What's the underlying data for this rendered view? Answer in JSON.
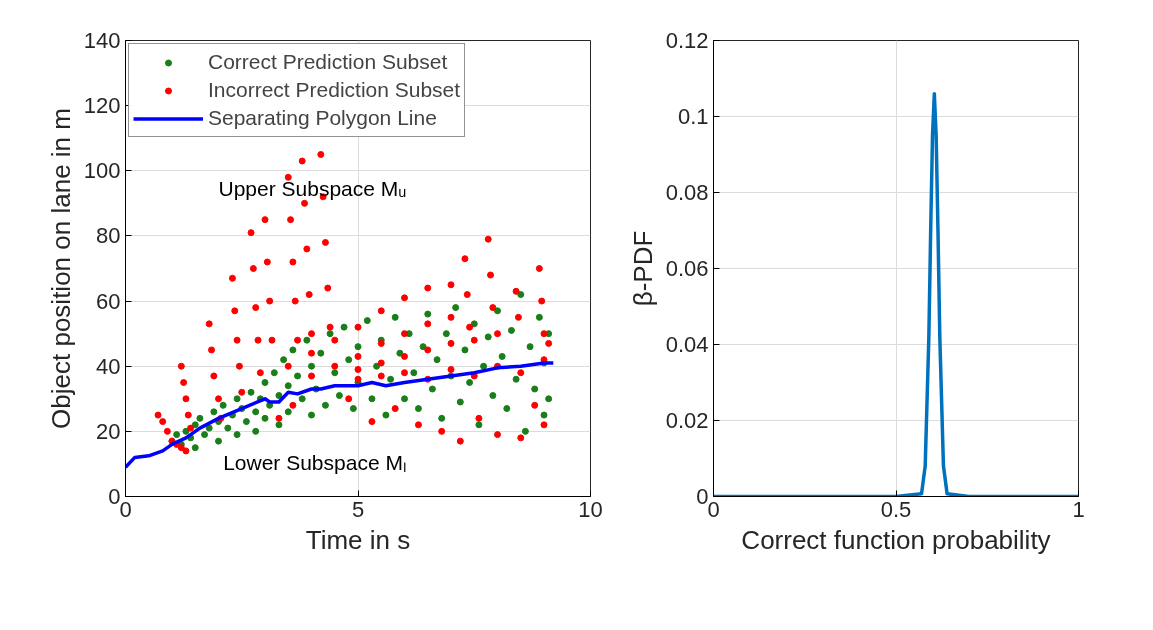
{
  "chart_data": [
    {
      "type": "scatter",
      "xlabel": "Time in s",
      "ylabel": "Object position on lane in m",
      "xlim": [
        0,
        10
      ],
      "xticks": [
        0,
        5,
        10
      ],
      "ylim": [
        0,
        140
      ],
      "yticks": [
        0,
        20,
        40,
        60,
        80,
        100,
        120,
        140
      ],
      "grid": true,
      "legend": "top left",
      "annotations": [
        "Upper Subspace Mᵤ",
        "Lower Subspace Mₗ"
      ],
      "series": [
        {
          "name": "Correct Prediction Subset",
          "type": "scatter",
          "marker": "circle",
          "color": "#1a7f1a",
          "x": [
            1.0,
            1.1,
            1.2,
            1.3,
            1.4,
            1.5,
            1.5,
            1.6,
            1.7,
            1.8,
            1.9,
            2.0,
            2.0,
            2.1,
            2.2,
            2.3,
            2.4,
            2.4,
            2.5,
            2.6,
            2.7,
            2.8,
            2.8,
            2.9,
            3.0,
            3.0,
            3.1,
            3.2,
            3.3,
            3.3,
            3.4,
            3.5,
            3.5,
            3.6,
            3.7,
            3.8,
            3.9,
            4.0,
            4.0,
            4.1,
            4.2,
            4.3,
            4.4,
            4.5,
            4.6,
            4.7,
            4.8,
            4.9,
            5.0,
            5.0,
            5.2,
            5.3,
            5.4,
            5.5,
            5.6,
            5.7,
            5.8,
            5.9,
            6.0,
            6.1,
            6.2,
            6.3,
            6.4,
            6.5,
            6.6,
            6.7,
            6.8,
            6.9,
            7.0,
            7.1,
            7.2,
            7.3,
            7.4,
            7.5,
            7.6,
            7.7,
            7.8,
            7.9,
            8.0,
            8.1,
            8.2,
            8.3,
            8.4,
            8.5,
            8.6,
            8.7,
            8.8,
            8.9,
            9.0,
            9.0,
            9.1,
            9.1
          ],
          "values": [
            17,
            19,
            16,
            20,
            18,
            22,
            15,
            24,
            19,
            21,
            26,
            17,
            23,
            28,
            21,
            25,
            30,
            19,
            27,
            23,
            32,
            26,
            20,
            30,
            35,
            24,
            28,
            38,
            31,
            22,
            42,
            34,
            26,
            45,
            37,
            30,
            48,
            40,
            25,
            33,
            44,
            28,
            50,
            38,
            31,
            52,
            42,
            27,
            46,
            35,
            54,
            30,
            40,
            48,
            25,
            36,
            55,
            44,
            30,
            50,
            38,
            27,
            46,
            56,
            33,
            42,
            24,
            50,
            37,
            58,
            29,
            45,
            35,
            53,
            22,
            40,
            49,
            31,
            57,
            43,
            27,
            51,
            36,
            62,
            20,
            46,
            33,
            55,
            41,
            25,
            50,
            30
          ]
        },
        {
          "name": "Incorrect Prediction Subset",
          "type": "scatter",
          "marker": "circle",
          "color": "#ff0000",
          "x": [
            0.7,
            0.8,
            0.9,
            1.0,
            1.1,
            1.2,
            1.3,
            1.2,
            1.25,
            1.3,
            1.35,
            1.4,
            1.8,
            1.85,
            1.9,
            2.0,
            2.05,
            2.3,
            2.35,
            2.4,
            2.45,
            2.5,
            2.7,
            2.75,
            2.8,
            2.85,
            2.9,
            3.0,
            3.05,
            3.1,
            3.15,
            3.5,
            3.55,
            3.6,
            3.65,
            3.7,
            3.8,
            3.85,
            3.9,
            3.95,
            4.0,
            4.2,
            4.25,
            4.3,
            4.35,
            4.4,
            3.5,
            4.0,
            4.5,
            5.0,
            5.5,
            6.0,
            6.5,
            7.0,
            4.0,
            4.5,
            5.0,
            5.5,
            6.0,
            6.5,
            7.0,
            5.0,
            5.5,
            6.0,
            6.5,
            7.0,
            7.5,
            8.0,
            5.0,
            5.5,
            6.0,
            6.5,
            7.0,
            7.5,
            8.0,
            8.5,
            9.0,
            9.1,
            3.3,
            3.6,
            4.8,
            5.3,
            5.8,
            6.3,
            6.8,
            7.2,
            7.6,
            8.0,
            8.5,
            8.8,
            9.0,
            7.3,
            7.35,
            7.4,
            7.8,
            7.85,
            7.9,
            8.4,
            8.45,
            8.9,
            8.95,
            9.0
          ],
          "values": [
            25,
            23,
            20,
            17,
            16,
            15,
            14,
            40,
            35,
            30,
            25,
            21,
            53,
            45,
            37,
            30,
            24,
            67,
            57,
            48,
            40,
            32,
            81,
            70,
            58,
            48,
            38,
            85,
            72,
            60,
            48,
            98,
            85,
            72,
            60,
            48,
            103,
            90,
            76,
            62,
            50,
            105,
            92,
            78,
            64,
            52,
            40,
            44,
            48,
            52,
            57,
            61,
            64,
            65,
            37,
            40,
            43,
            47,
            50,
            53,
            55,
            39,
            41,
            43,
            45,
            47,
            48,
            50,
            36,
            37,
            38,
            36,
            39,
            37,
            40,
            38,
            42,
            47,
            24,
            28,
            30,
            23,
            27,
            22,
            20,
            17,
            24,
            19,
            18,
            28,
            22,
            73,
            62,
            52,
            79,
            68,
            58,
            63,
            55,
            70,
            60,
            50
          ]
        },
        {
          "name": "Separating Polygon Line",
          "type": "line",
          "marker": "none",
          "color": "#0000ff",
          "x": [
            0,
            0.2,
            0.5,
            0.8,
            1,
            1.3,
            1.6,
            2,
            2.5,
            3,
            3.1,
            3.3,
            3.5,
            3.7,
            4,
            4.2,
            4.5,
            4.7,
            5,
            5.3,
            5.6,
            6,
            6.5,
            7,
            7.5,
            8,
            8.5,
            9,
            9.2
          ],
          "values": [
            9,
            12,
            12.5,
            14,
            16,
            18,
            21,
            24,
            27,
            30,
            29,
            29,
            32,
            31.5,
            33,
            33,
            34,
            34,
            34,
            35,
            34,
            35,
            36,
            37,
            38,
            39.5,
            40,
            41,
            41
          ]
        }
      ]
    },
    {
      "type": "line",
      "xlabel": "Correct function probability",
      "ylabel": "β-PDF",
      "xlim": [
        0,
        1
      ],
      "xticks": [
        0,
        0.5,
        1
      ],
      "ylim": [
        0,
        0.12
      ],
      "yticks": [
        0,
        0.02,
        0.04,
        0.06,
        0.08,
        0.1,
        0.12
      ],
      "grid": true,
      "series": [
        {
          "color": "#0072bd",
          "x": [
            0,
            0.5,
            0.57,
            0.58,
            0.59,
            0.595,
            0.6,
            0.605,
            0.61,
            0.615,
            0.62,
            0.63,
            0.64,
            0.7,
            1
          ],
          "values": [
            0,
            0,
            0.0007,
            0.008,
            0.042,
            0.07,
            0.095,
            0.106,
            0.095,
            0.07,
            0.042,
            0.008,
            0.0007,
            0,
            0
          ]
        }
      ]
    }
  ]
}
